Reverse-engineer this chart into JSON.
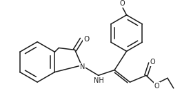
{
  "bg_color": "#ffffff",
  "line_color": "#1a1a1a",
  "line_width": 1.1,
  "font_size": 7.0,
  "figsize": [
    2.64,
    1.61
  ],
  "dpi": 100,
  "xlim": [
    0,
    264
  ],
  "ylim": [
    0,
    161
  ]
}
